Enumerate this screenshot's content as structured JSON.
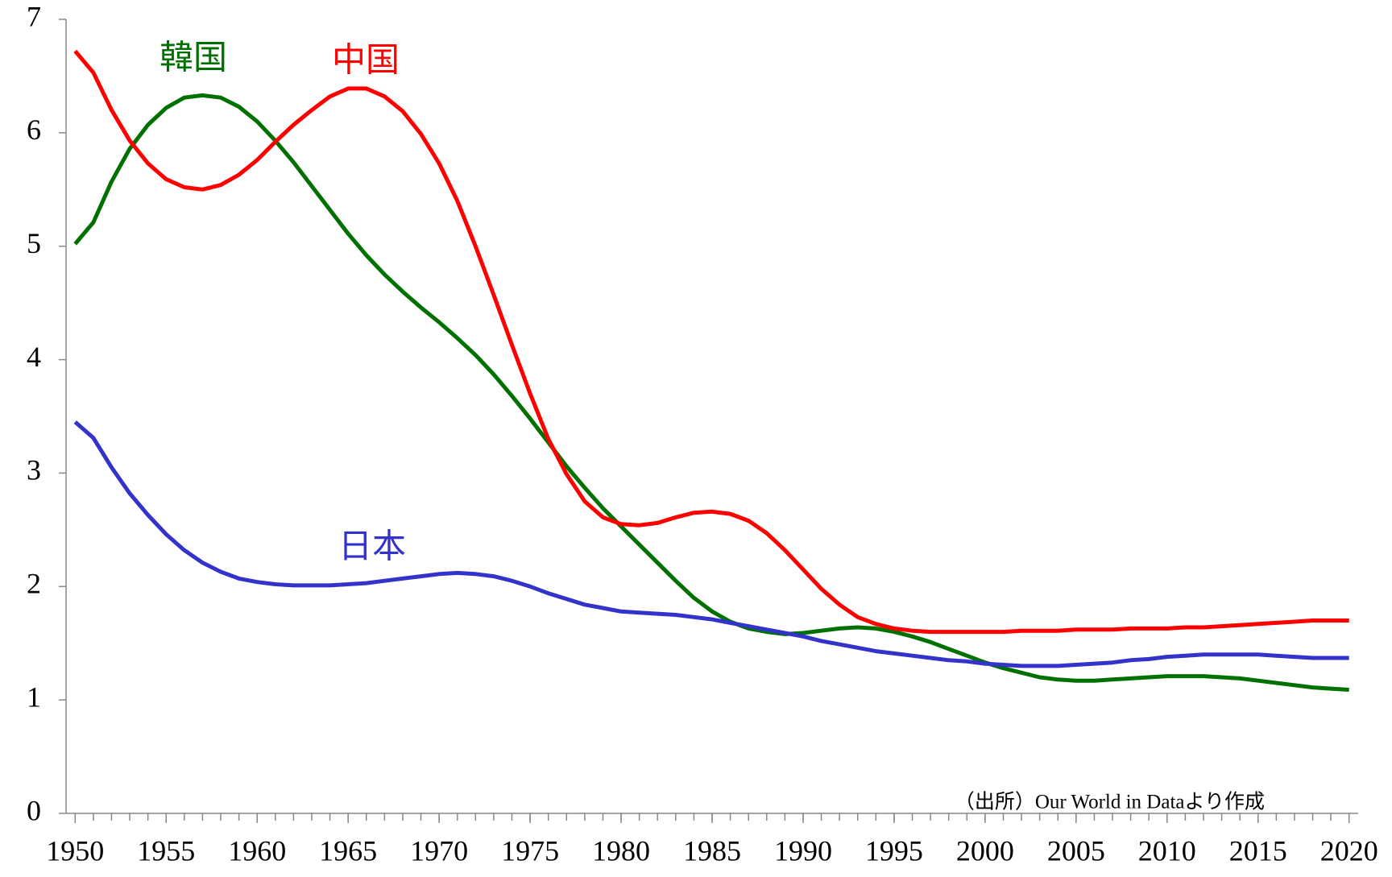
{
  "chart_data": {
    "type": "line",
    "annotation": "（出所）Our World in Dataより作成",
    "x": [
      1950,
      1951,
      1952,
      1953,
      1954,
      1955,
      1956,
      1957,
      1958,
      1959,
      1960,
      1961,
      1962,
      1963,
      1964,
      1965,
      1966,
      1967,
      1968,
      1969,
      1970,
      1971,
      1972,
      1973,
      1974,
      1975,
      1976,
      1977,
      1978,
      1979,
      1980,
      1981,
      1982,
      1983,
      1984,
      1985,
      1986,
      1987,
      1988,
      1989,
      1990,
      1991,
      1992,
      1993,
      1994,
      1995,
      1996,
      1997,
      1998,
      1999,
      2000,
      2001,
      2002,
      2003,
      2004,
      2005,
      2006,
      2007,
      2008,
      2009,
      2010,
      2011,
      2012,
      2013,
      2014,
      2015,
      2016,
      2017,
      2018,
      2019,
      2020
    ],
    "series": [
      {
        "name": "韓国",
        "color": "#007000",
        "values": [
          5.02,
          5.21,
          5.57,
          5.86,
          6.07,
          6.22,
          6.31,
          6.33,
          6.31,
          6.23,
          6.1,
          5.93,
          5.74,
          5.53,
          5.32,
          5.11,
          4.92,
          4.75,
          4.6,
          4.46,
          4.33,
          4.19,
          4.04,
          3.87,
          3.68,
          3.48,
          3.27,
          3.06,
          2.87,
          2.69,
          2.53,
          2.37,
          2.21,
          2.05,
          1.9,
          1.78,
          1.69,
          1.63,
          1.6,
          1.58,
          1.59,
          1.61,
          1.63,
          1.64,
          1.63,
          1.6,
          1.56,
          1.51,
          1.45,
          1.39,
          1.33,
          1.28,
          1.24,
          1.2,
          1.18,
          1.17,
          1.17,
          1.18,
          1.19,
          1.2,
          1.21,
          1.21,
          1.21,
          1.2,
          1.19,
          1.17,
          1.15,
          1.13,
          1.11,
          1.1,
          1.09
        ]
      },
      {
        "name": "中国",
        "color": "#ff0000",
        "values": [
          6.72,
          6.53,
          6.2,
          5.93,
          5.73,
          5.59,
          5.52,
          5.5,
          5.54,
          5.63,
          5.76,
          5.92,
          6.07,
          6.2,
          6.32,
          6.39,
          6.39,
          6.32,
          6.19,
          5.99,
          5.73,
          5.4,
          5.0,
          4.57,
          4.13,
          3.7,
          3.3,
          2.99,
          2.75,
          2.61,
          2.55,
          2.54,
          2.56,
          2.61,
          2.65,
          2.66,
          2.64,
          2.58,
          2.47,
          2.32,
          2.15,
          1.98,
          1.84,
          1.73,
          1.67,
          1.63,
          1.61,
          1.6,
          1.6,
          1.6,
          1.6,
          1.6,
          1.61,
          1.61,
          1.61,
          1.62,
          1.62,
          1.62,
          1.63,
          1.63,
          1.63,
          1.64,
          1.64,
          1.65,
          1.66,
          1.67,
          1.68,
          1.69,
          1.7,
          1.7,
          1.7
        ]
      },
      {
        "name": "日本",
        "color": "#3333cc",
        "values": [
          3.45,
          3.31,
          3.05,
          2.82,
          2.63,
          2.46,
          2.32,
          2.21,
          2.13,
          2.07,
          2.04,
          2.02,
          2.01,
          2.01,
          2.01,
          2.02,
          2.03,
          2.05,
          2.07,
          2.09,
          2.11,
          2.12,
          2.11,
          2.09,
          2.05,
          2.0,
          1.94,
          1.89,
          1.84,
          1.81,
          1.78,
          1.77,
          1.76,
          1.75,
          1.73,
          1.71,
          1.68,
          1.65,
          1.62,
          1.59,
          1.56,
          1.52,
          1.49,
          1.46,
          1.43,
          1.41,
          1.39,
          1.37,
          1.35,
          1.34,
          1.32,
          1.31,
          1.3,
          1.3,
          1.3,
          1.31,
          1.32,
          1.33,
          1.35,
          1.36,
          1.38,
          1.39,
          1.4,
          1.4,
          1.4,
          1.4,
          1.39,
          1.38,
          1.37,
          1.37,
          1.37
        ]
      }
    ],
    "xlim": [
      1949.5,
      2020.5
    ],
    "xticks": [
      1950,
      1955,
      1960,
      1965,
      1970,
      1975,
      1980,
      1985,
      1990,
      1995,
      2000,
      2005,
      2010,
      2015,
      2020
    ],
    "ylim": [
      0,
      7
    ],
    "yticks": [
      0,
      1,
      2,
      3,
      4,
      5,
      6,
      7
    ],
    "grid": false,
    "legend": "inline"
  }
}
